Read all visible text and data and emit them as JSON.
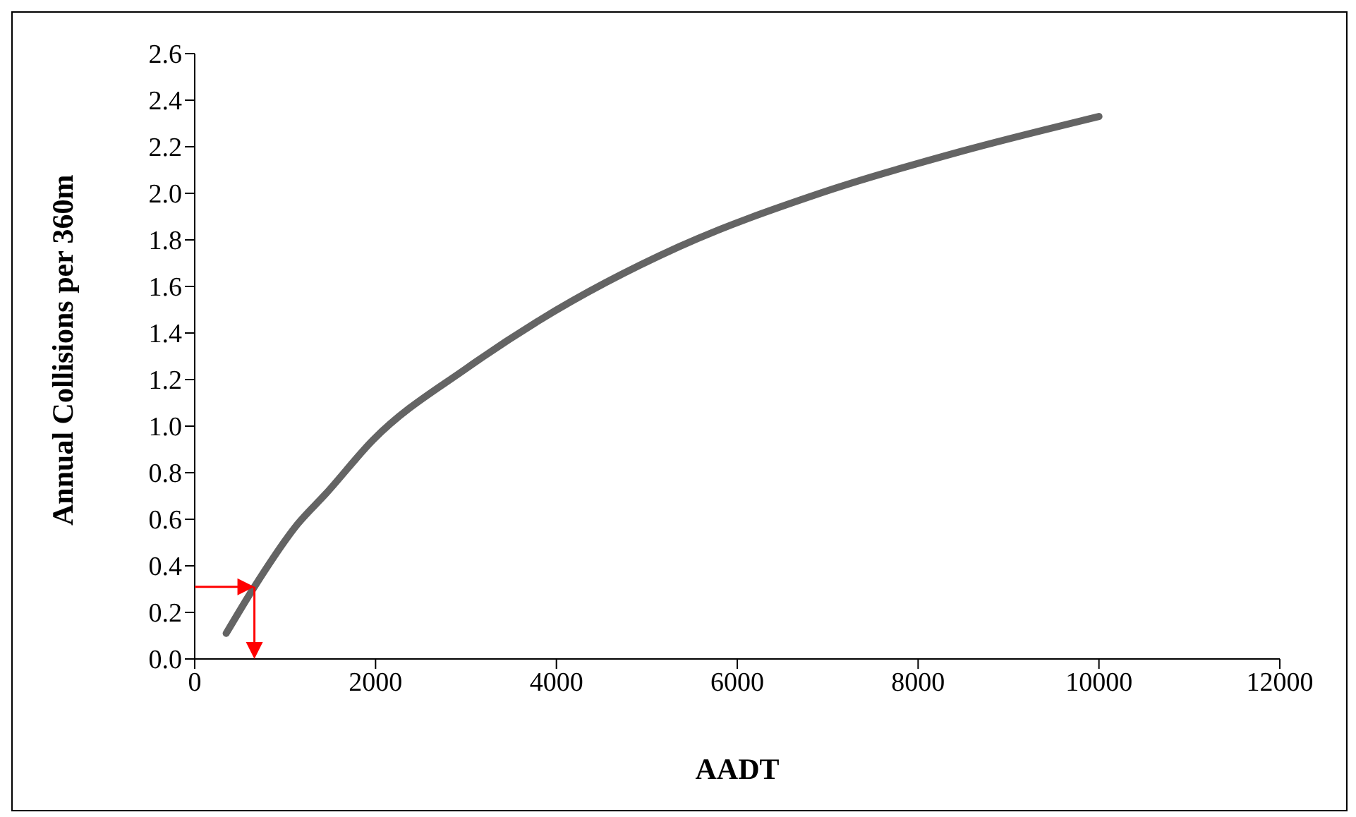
{
  "chart_data": {
    "type": "line",
    "xlabel": "AADT",
    "ylabel": "Annual Collisions per 360m",
    "x": [
      348,
      660,
      1139,
      1451,
      1971,
      3012,
      3792,
      5353,
      6913,
      8474,
      10000
    ],
    "series": [
      {
        "color": "#646464",
        "values": [
          0.11,
          0.31,
          0.58,
          0.71,
          0.94,
          1.25,
          1.45,
          1.77,
          2.0,
          2.18,
          2.33
        ]
      }
    ],
    "xlim": [
      0,
      12000
    ],
    "xticks": [
      0,
      2000,
      4000,
      6000,
      8000,
      10000,
      12000
    ],
    "ylim": [
      0,
      2.6
    ],
    "yticks": [
      {
        "value": 0,
        "label": "0.0"
      },
      {
        "value": 0.2,
        "label": "0.2"
      },
      {
        "value": 0.4,
        "label": "0.4"
      },
      {
        "value": 0.6,
        "label": "0.6"
      },
      {
        "value": 0.8,
        "label": "0.8"
      },
      {
        "value": 1,
        "label": "1.0"
      },
      {
        "value": 1.2,
        "label": "1.2"
      },
      {
        "value": 1.4,
        "label": "1.4"
      },
      {
        "value": 1.6,
        "label": "1.6"
      },
      {
        "value": 1.8,
        "label": "1.8"
      },
      {
        "value": 2,
        "label": "2.0"
      },
      {
        "value": 2.2,
        "label": "2.2"
      },
      {
        "value": 2.4,
        "label": "2.4"
      },
      {
        "value": 2.6,
        "label": "2.6"
      }
    ],
    "grid": false,
    "legend": false,
    "marker": "none",
    "line_style": "solid"
  }
}
